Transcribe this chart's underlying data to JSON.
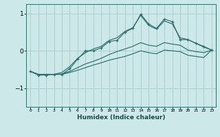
{
  "xlabel": "Humidex (Indice chaleur)",
  "bg_color": "#cce8e8",
  "grid_color": "#aacfcf",
  "line_color": "#2e6e6e",
  "x_values": [
    0,
    1,
    2,
    3,
    4,
    5,
    6,
    7,
    8,
    9,
    10,
    11,
    12,
    13,
    14,
    15,
    16,
    17,
    18,
    19,
    20,
    21,
    22,
    23
  ],
  "line_main": [
    -0.55,
    -0.65,
    -0.65,
    -0.63,
    -0.63,
    -0.48,
    -0.22,
    0.0,
    0.0,
    0.08,
    0.25,
    0.28,
    0.5,
    0.6,
    0.98,
    0.72,
    0.6,
    0.85,
    0.78,
    0.3,
    0.3,
    0.2,
    0.12,
    0.02
  ],
  "line_upper": [
    -0.55,
    -0.63,
    -0.63,
    -0.63,
    -0.58,
    -0.42,
    -0.2,
    -0.05,
    0.05,
    0.12,
    0.28,
    0.35,
    0.52,
    0.62,
    0.95,
    0.68,
    0.58,
    0.8,
    0.72,
    0.35,
    0.3,
    0.2,
    0.1,
    0.02
  ],
  "line_lower1": [
    -0.55,
    -0.63,
    -0.63,
    -0.63,
    -0.62,
    -0.55,
    -0.45,
    -0.35,
    -0.28,
    -0.2,
    -0.1,
    -0.02,
    0.05,
    0.12,
    0.22,
    0.15,
    0.12,
    0.22,
    0.18,
    0.15,
    0.02,
    -0.02,
    -0.05,
    0.02
  ],
  "line_lower2": [
    -0.55,
    -0.63,
    -0.63,
    -0.63,
    -0.63,
    -0.58,
    -0.52,
    -0.45,
    -0.38,
    -0.32,
    -0.25,
    -0.2,
    -0.15,
    -0.08,
    0.0,
    -0.05,
    -0.08,
    0.02,
    0.0,
    -0.02,
    -0.12,
    -0.15,
    -0.18,
    0.02
  ],
  "ylim": [
    -1.5,
    1.25
  ],
  "yticks": [
    -1,
    0,
    1
  ],
  "xlim": [
    -0.5,
    23.5
  ]
}
